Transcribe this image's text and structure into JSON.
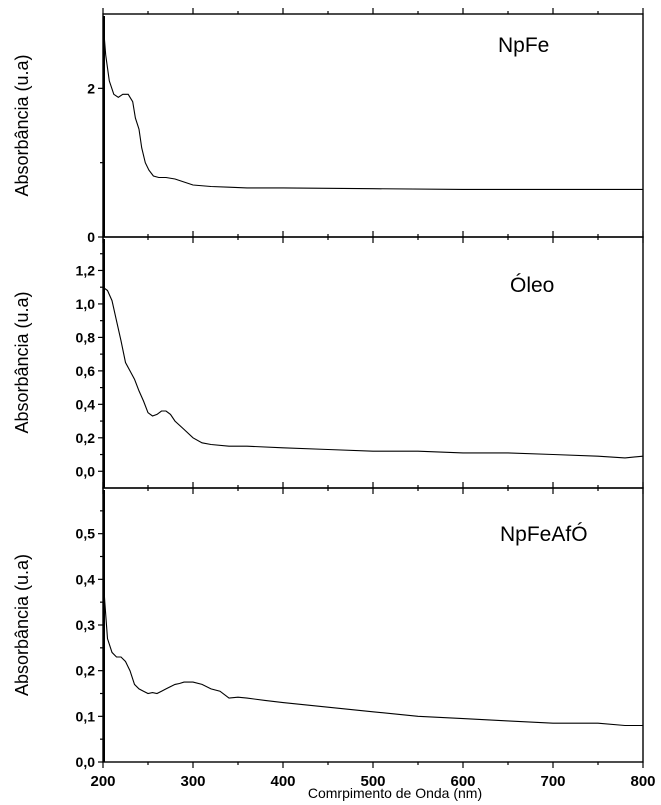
{
  "xlabel": "Comrpimento de Onda (nm)",
  "chart_data": [
    {
      "type": "line",
      "panel_label": "NpFe",
      "ylabel": "Absorbância (u.a)",
      "xlim": [
        200,
        800
      ],
      "ylim": [
        0,
        3.0
      ],
      "yticks": [
        0,
        2
      ],
      "ytick_labels": [
        "0",
        "2"
      ],
      "xticks": [
        200,
        300,
        400,
        500,
        600,
        700,
        800
      ],
      "xtick_labels": [],
      "x": [
        200,
        203,
        207,
        212,
        217,
        222,
        228,
        233,
        236,
        240,
        243,
        247,
        251,
        256,
        262,
        270,
        280,
        290,
        300,
        320,
        340,
        360,
        400,
        500,
        600,
        700,
        800
      ],
      "y": [
        2.9,
        2.45,
        2.1,
        1.92,
        1.88,
        1.92,
        1.92,
        1.82,
        1.6,
        1.45,
        1.2,
        1.0,
        0.9,
        0.82,
        0.8,
        0.8,
        0.78,
        0.74,
        0.7,
        0.68,
        0.67,
        0.66,
        0.66,
        0.65,
        0.64,
        0.64,
        0.64
      ]
    },
    {
      "type": "line",
      "panel_label": "Óleo",
      "ylabel": "Absorbância (u.a)",
      "xlim": [
        200,
        800
      ],
      "ylim": [
        -0.1,
        1.4
      ],
      "yticks": [
        0.0,
        0.2,
        0.4,
        0.6,
        0.8,
        1.0,
        1.2
      ],
      "ytick_labels": [
        "0,0",
        "0,2",
        "0,4",
        "0,6",
        "0,8",
        "1,0",
        "1,2"
      ],
      "xticks": [
        200,
        300,
        400,
        500,
        600,
        700,
        800
      ],
      "xtick_labels": [],
      "x": [
        200,
        205,
        210,
        215,
        220,
        225,
        230,
        235,
        240,
        245,
        250,
        255,
        260,
        265,
        270,
        275,
        280,
        290,
        300,
        310,
        320,
        340,
        360,
        400,
        450,
        500,
        550,
        600,
        650,
        700,
        750,
        780,
        800
      ],
      "y": [
        1.1,
        1.08,
        1.02,
        0.9,
        0.78,
        0.65,
        0.6,
        0.55,
        0.48,
        0.42,
        0.35,
        0.33,
        0.34,
        0.36,
        0.36,
        0.34,
        0.3,
        0.25,
        0.2,
        0.17,
        0.16,
        0.15,
        0.15,
        0.14,
        0.13,
        0.12,
        0.12,
        0.11,
        0.11,
        0.1,
        0.09,
        0.08,
        0.09
      ]
    },
    {
      "type": "line",
      "panel_label": "NpFeAfÓ",
      "ylabel": "Absorbância (u.a)",
      "xlim": [
        200,
        800
      ],
      "ylim": [
        0.0,
        0.6
      ],
      "yticks": [
        0.0,
        0.1,
        0.2,
        0.3,
        0.4,
        0.5
      ],
      "ytick_labels": [
        "0,0",
        "0,1",
        "0,2",
        "0,3",
        "0,4",
        "0,5"
      ],
      "xticks": [
        200,
        300,
        400,
        500,
        600,
        700,
        800
      ],
      "xtick_labels": [
        "200",
        "300",
        "400",
        "500",
        "600",
        "700",
        "800"
      ],
      "x": [
        200,
        202,
        205,
        210,
        215,
        220,
        225,
        230,
        235,
        240,
        245,
        250,
        255,
        260,
        265,
        270,
        275,
        280,
        285,
        290,
        300,
        310,
        320,
        330,
        340,
        350,
        360,
        380,
        400,
        450,
        500,
        550,
        600,
        650,
        700,
        750,
        780,
        800
      ],
      "y": [
        0.41,
        0.35,
        0.27,
        0.24,
        0.23,
        0.23,
        0.22,
        0.2,
        0.17,
        0.16,
        0.155,
        0.15,
        0.152,
        0.15,
        0.155,
        0.16,
        0.165,
        0.17,
        0.172,
        0.175,
        0.175,
        0.17,
        0.16,
        0.155,
        0.14,
        0.142,
        0.14,
        0.135,
        0.13,
        0.12,
        0.11,
        0.1,
        0.095,
        0.09,
        0.085,
        0.085,
        0.08,
        0.08
      ]
    }
  ]
}
